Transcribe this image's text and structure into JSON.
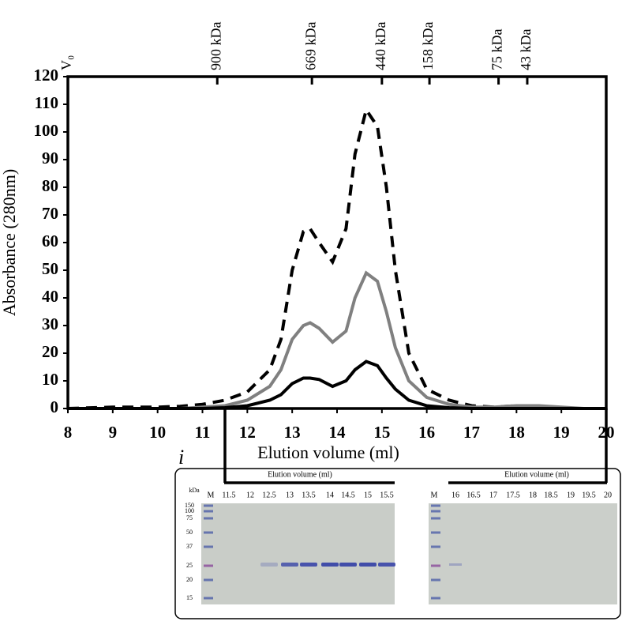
{
  "chart_data": {
    "type": "line",
    "x_label": "Elution volume (ml)",
    "y_label": "Absorbance (280nm)",
    "x": [
      8,
      9,
      10,
      10.5,
      11,
      11.5,
      12,
      12.5,
      12.75,
      13,
      13.25,
      13.4,
      13.6,
      13.9,
      14.2,
      14.4,
      14.65,
      14.9,
      15.1,
      15.3,
      15.6,
      16,
      16.5,
      17,
      17.5,
      18,
      18.5,
      19,
      19.5,
      20
    ],
    "series": [
      {
        "color": "#000000",
        "dashed": true,
        "values": [
          0,
          0.5,
          0.5,
          0.8,
          1.5,
          3,
          6,
          14,
          25,
          50,
          64,
          65,
          60,
          53,
          65,
          92,
          108,
          102,
          80,
          50,
          20,
          7,
          3,
          1,
          0.5,
          1,
          0.5,
          0,
          0,
          0
        ]
      },
      {
        "color": "#808080",
        "dashed": false,
        "values": [
          0,
          0,
          0,
          0,
          0.5,
          1,
          3,
          8,
          14,
          25,
          30,
          31,
          29,
          24,
          28,
          40,
          49,
          46,
          35,
          22,
          10,
          4,
          1.5,
          0.5,
          0.5,
          1,
          1,
          0.5,
          0,
          0
        ]
      },
      {
        "color": "#000000",
        "dashed": false,
        "values": [
          0,
          0,
          0,
          0,
          0,
          0.3,
          1,
          3,
          5,
          9,
          11,
          11,
          10.5,
          8,
          10,
          14,
          17,
          15.5,
          11,
          7,
          3,
          1,
          0.3,
          0,
          0,
          0,
          0,
          0,
          0,
          0
        ]
      }
    ],
    "xlim": [
      8,
      20
    ],
    "ylim": [
      0,
      120
    ],
    "xticks": [
      8,
      9,
      10,
      11,
      12,
      13,
      14,
      15,
      16,
      17,
      18,
      19,
      20
    ],
    "yticks": [
      0,
      10,
      20,
      30,
      40,
      50,
      60,
      70,
      80,
      90,
      100,
      110,
      120
    ],
    "x2ticks": [
      {
        "value": 8,
        "label": "V₀"
      },
      {
        "value": 11.33,
        "label": "900 kDa"
      },
      {
        "value": 13.44,
        "label": "669 kDa"
      },
      {
        "value": 15,
        "label": "440 kDa"
      },
      {
        "value": 16.06,
        "label": "158 kDa"
      },
      {
        "value": 17.6,
        "label": "75 kDa"
      },
      {
        "value": 18.24,
        "label": "43 kDa"
      }
    ]
  },
  "gel": {
    "panel_label": "i",
    "kda_label": "kDa",
    "markers": [
      "150",
      "100",
      "75",
      "50",
      "37",
      "25",
      "20",
      "15"
    ],
    "left": {
      "header": "Elution volume (ml)",
      "lanes": [
        "M",
        "11.5",
        "12",
        "12.5",
        "13",
        "13.5",
        "14",
        "14.5",
        "15",
        "15.5"
      ]
    },
    "right": {
      "header": "Elution volume (ml)",
      "lanes": [
        "M",
        "16",
        "16.5",
        "17",
        "17.5",
        "18",
        "18.5",
        "19",
        "19.5",
        "20"
      ]
    }
  }
}
